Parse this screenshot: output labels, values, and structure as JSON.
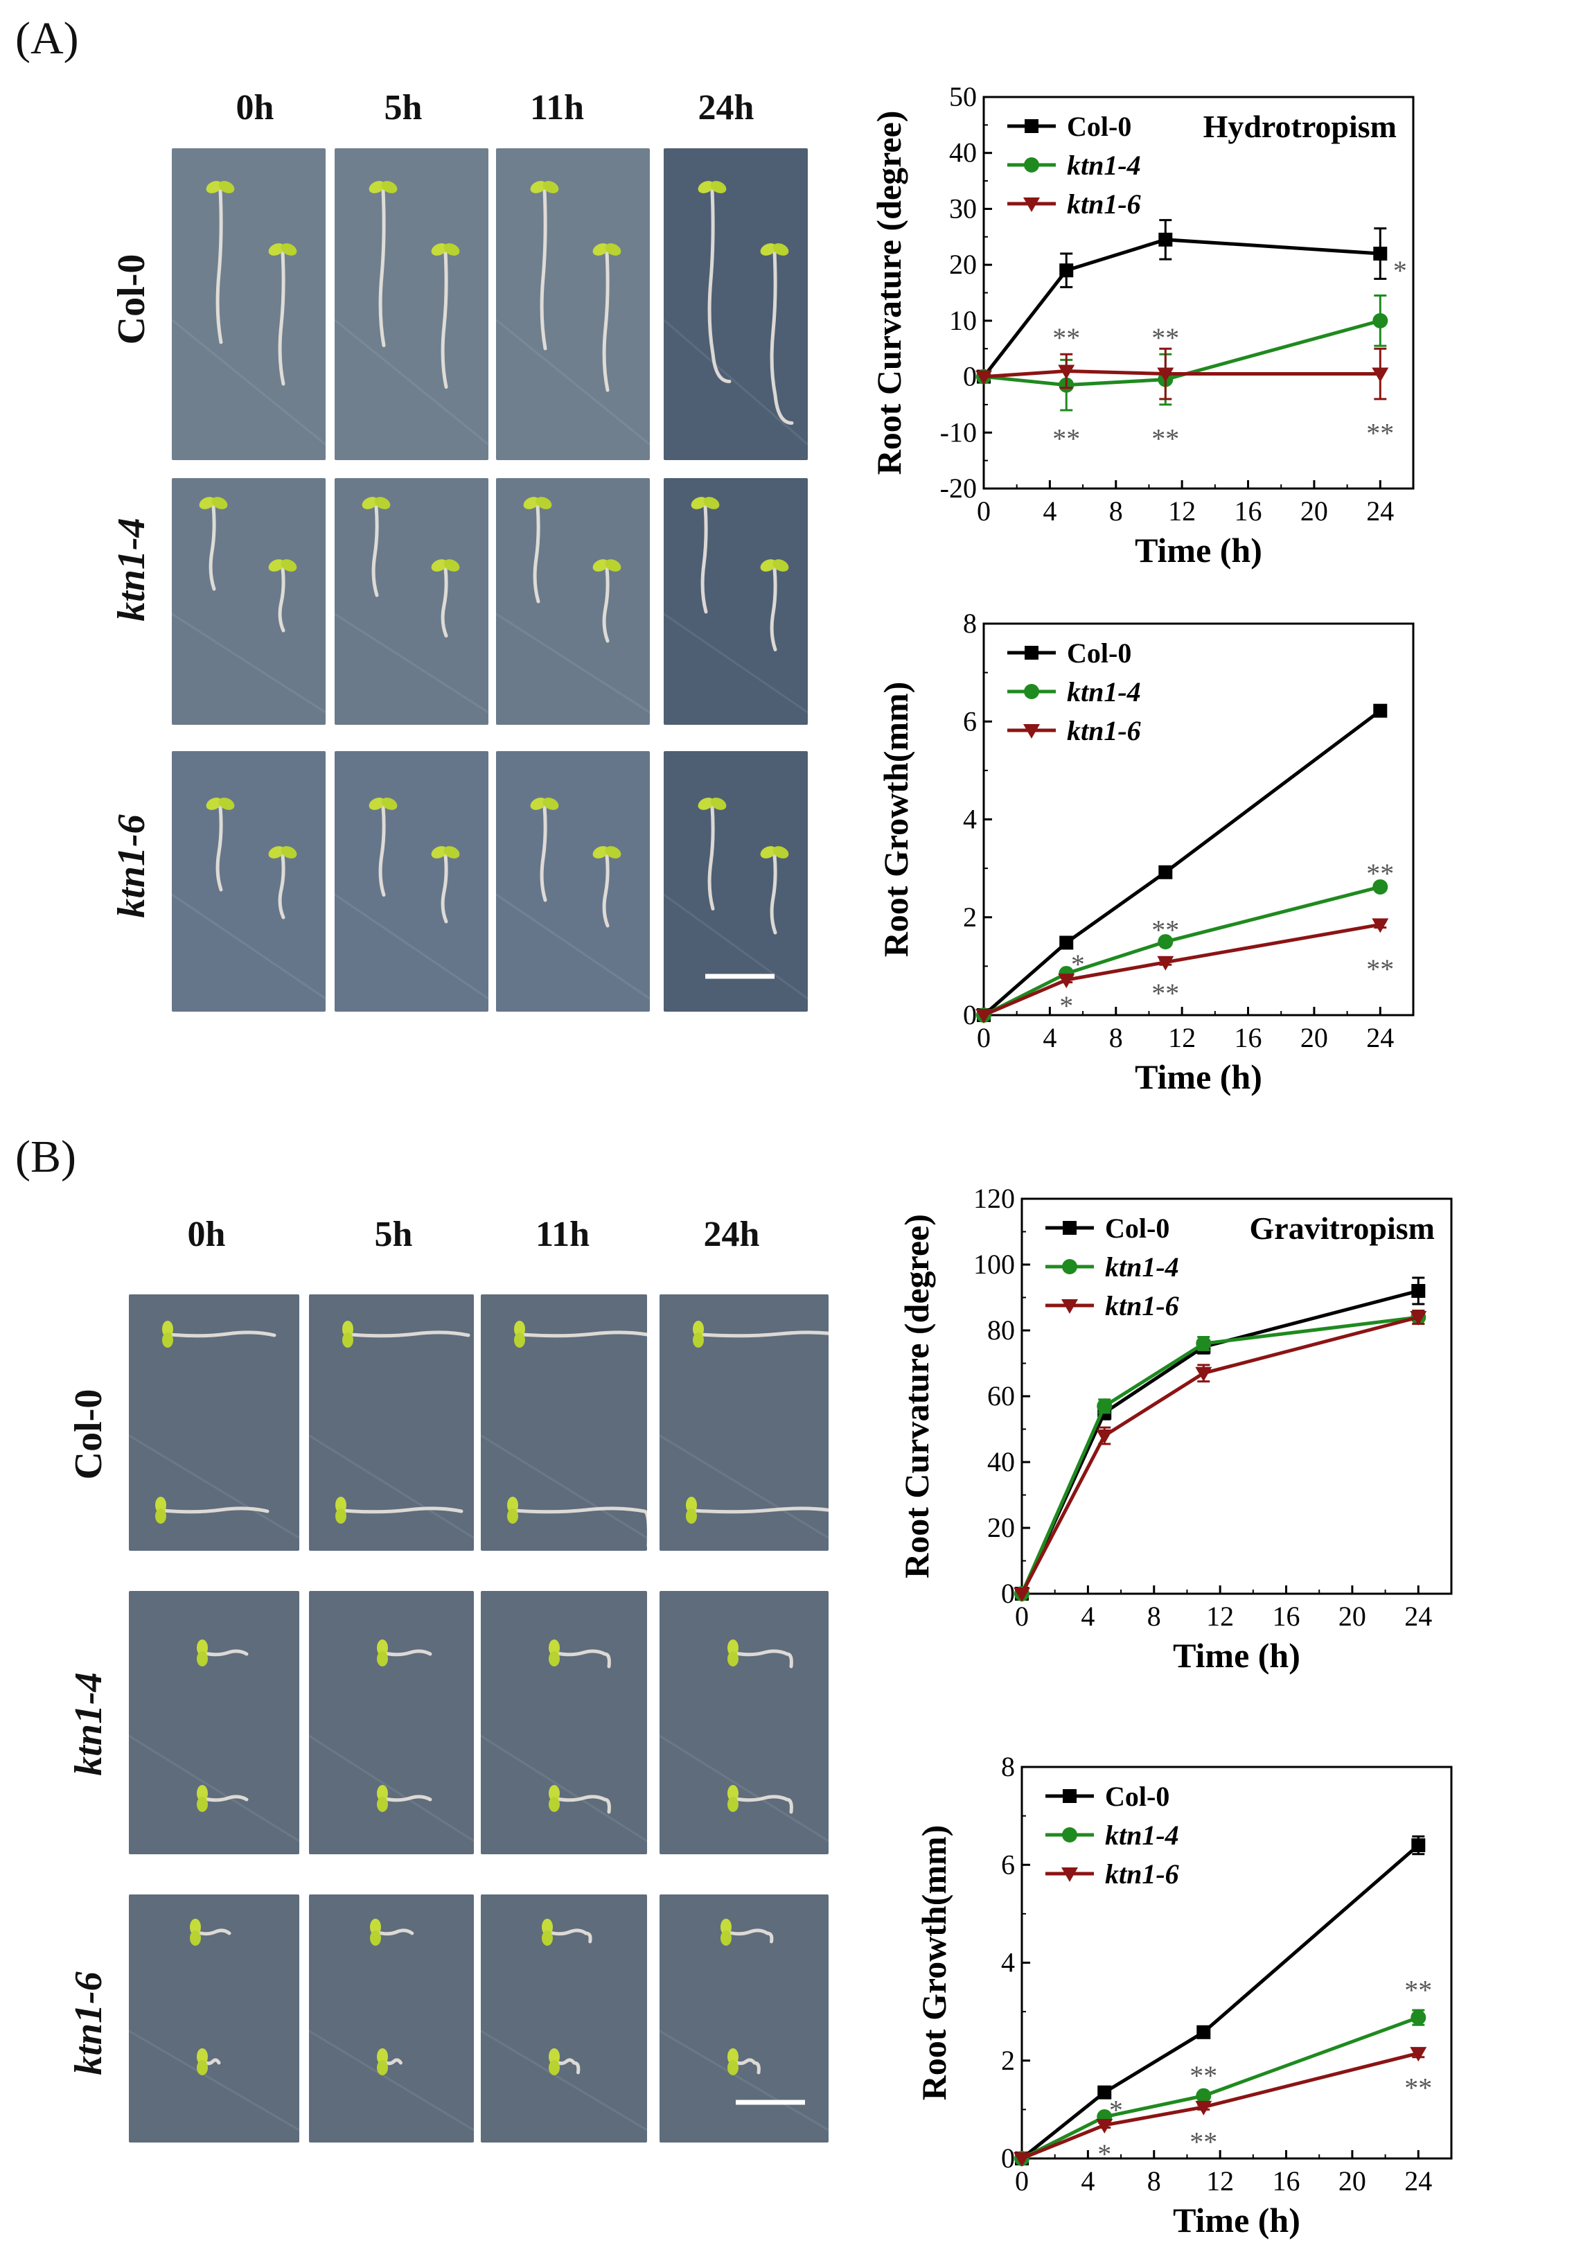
{
  "panel_A_label": "(A)",
  "panel_B_label": "(B)",
  "panel_A": {
    "time_labels": [
      "0h",
      "5h",
      "11h",
      "24h"
    ],
    "row_labels": [
      "Col-0",
      "ktn1-4",
      "ktn1-6"
    ]
  },
  "panel_B": {
    "time_labels": [
      "0h",
      "5h",
      "11h",
      "24h"
    ],
    "row_labels": [
      "Col-0",
      "ktn1-4",
      "ktn1-6"
    ]
  },
  "colors": {
    "col0": "#000000",
    "ktn14": "#1f8a1f",
    "ktn16": "#8b1414"
  },
  "chart_data": [
    {
      "id": "A_curvature",
      "type": "line",
      "title": "Hydrotropism",
      "xlabel": "Time (h)",
      "ylabel": "Root Curvature (degree)",
      "xlim": [
        0,
        26
      ],
      "ylim": [
        -20,
        50
      ],
      "xticks": [
        0,
        4,
        8,
        12,
        16,
        20,
        24
      ],
      "yticks": [
        -20,
        -10,
        0,
        10,
        20,
        30,
        40,
        50
      ],
      "x": [
        0,
        5,
        11,
        24
      ],
      "series": [
        {
          "name": "Col-0",
          "italic": false,
          "marker": "square",
          "values": [
            0,
            19,
            24.5,
            22
          ],
          "errors": [
            0,
            3,
            3.5,
            4.5
          ]
        },
        {
          "name": "ktn1-4",
          "italic": true,
          "marker": "circle",
          "values": [
            0,
            -1.5,
            -0.5,
            10
          ],
          "errors": [
            0,
            4.5,
            4.5,
            4.5
          ]
        },
        {
          "name": "ktn1-6",
          "italic": true,
          "marker": "tri-down",
          "values": [
            0,
            1,
            0.5,
            0.5
          ],
          "errors": [
            0,
            3,
            4.5,
            4.5
          ]
        }
      ],
      "annotations": [
        {
          "text": "**",
          "x": 5,
          "y": 7
        },
        {
          "text": "**",
          "x": 5,
          "y": -11
        },
        {
          "text": "**",
          "x": 11,
          "y": 7
        },
        {
          "text": "**",
          "x": 11,
          "y": -11
        },
        {
          "text": "*",
          "x": 25.2,
          "y": 19
        },
        {
          "text": "**",
          "x": 24,
          "y": -10
        }
      ]
    },
    {
      "id": "A_growth",
      "type": "line",
      "title": "",
      "xlabel": "Time (h)",
      "ylabel": "Root Growth(mm)",
      "xlim": [
        0,
        26
      ],
      "ylim": [
        0,
        8
      ],
      "xticks": [
        0,
        4,
        8,
        12,
        16,
        20,
        24
      ],
      "yticks": [
        0,
        2,
        4,
        6,
        8
      ],
      "x": [
        0,
        5,
        11,
        24
      ],
      "series": [
        {
          "name": "Col-0",
          "italic": false,
          "marker": "square",
          "values": [
            0,
            1.48,
            2.92,
            6.22
          ],
          "errors": [
            0,
            0.05,
            0.06,
            0.06
          ]
        },
        {
          "name": "ktn1-4",
          "italic": true,
          "marker": "circle",
          "values": [
            0,
            0.85,
            1.5,
            2.62
          ],
          "errors": [
            0,
            0.05,
            0.06,
            0.07
          ]
        },
        {
          "name": "ktn1-6",
          "italic": true,
          "marker": "tri-down",
          "values": [
            0,
            0.72,
            1.08,
            1.85
          ],
          "errors": [
            0,
            0.05,
            0.05,
            0.06
          ]
        }
      ],
      "annotations": [
        {
          "text": "*",
          "x": 5.7,
          "y": 1.05
        },
        {
          "text": "*",
          "x": 5,
          "y": 0.2
        },
        {
          "text": "**",
          "x": 11,
          "y": 1.75
        },
        {
          "text": "**",
          "x": 11,
          "y": 0.45
        },
        {
          "text": "**",
          "x": 24,
          "y": 2.9
        },
        {
          "text": "**",
          "x": 24,
          "y": 0.95
        }
      ]
    },
    {
      "id": "B_curvature",
      "type": "line",
      "title": "Gravitropism",
      "xlabel": "Time (h)",
      "ylabel": "Root Curvature (degree)",
      "xlim": [
        0,
        26
      ],
      "ylim": [
        0,
        120
      ],
      "xticks": [
        0,
        4,
        8,
        12,
        16,
        20,
        24
      ],
      "yticks": [
        0,
        20,
        40,
        60,
        80,
        100,
        120
      ],
      "x": [
        0,
        5,
        11,
        24
      ],
      "series": [
        {
          "name": "Col-0",
          "italic": false,
          "marker": "square",
          "values": [
            0,
            55,
            75,
            92
          ],
          "errors": [
            0,
            2,
            2,
            4
          ]
        },
        {
          "name": "ktn1-4",
          "italic": true,
          "marker": "circle",
          "values": [
            0,
            57,
            76,
            84
          ],
          "errors": [
            0,
            2,
            2,
            2
          ]
        },
        {
          "name": "ktn1-6",
          "italic": true,
          "marker": "tri-down",
          "values": [
            0,
            48,
            67,
            84
          ],
          "errors": [
            0,
            2.5,
            2.5,
            2
          ]
        }
      ],
      "annotations": []
    },
    {
      "id": "B_growth",
      "type": "line",
      "title": "",
      "xlabel": "Time (h)",
      "ylabel": "Root Growth(mm)",
      "xlim": [
        0,
        26
      ],
      "ylim": [
        0,
        8
      ],
      "xticks": [
        0,
        4,
        8,
        12,
        16,
        20,
        24
      ],
      "yticks": [
        0,
        2,
        4,
        6,
        8
      ],
      "x": [
        0,
        5,
        11,
        24
      ],
      "series": [
        {
          "name": "Col-0",
          "italic": false,
          "marker": "square",
          "values": [
            0,
            1.35,
            2.58,
            6.4
          ],
          "errors": [
            0,
            0.06,
            0.06,
            0.18
          ]
        },
        {
          "name": "ktn1-4",
          "italic": true,
          "marker": "circle",
          "values": [
            0,
            0.85,
            1.28,
            2.88
          ],
          "errors": [
            0,
            0.05,
            0.06,
            0.15
          ]
        },
        {
          "name": "ktn1-6",
          "italic": true,
          "marker": "tri-down",
          "values": [
            0,
            0.68,
            1.05,
            2.15
          ],
          "errors": [
            0,
            0.05,
            0.05,
            0.08
          ]
        }
      ],
      "annotations": [
        {
          "text": "*",
          "x": 5.7,
          "y": 1.0
        },
        {
          "text": "*",
          "x": 5,
          "y": 0.1
        },
        {
          "text": "**",
          "x": 11,
          "y": 1.7
        },
        {
          "text": "**",
          "x": 11,
          "y": 0.35
        },
        {
          "text": "**",
          "x": 24,
          "y": 3.45
        },
        {
          "text": "**",
          "x": 24,
          "y": 1.45
        }
      ]
    }
  ]
}
